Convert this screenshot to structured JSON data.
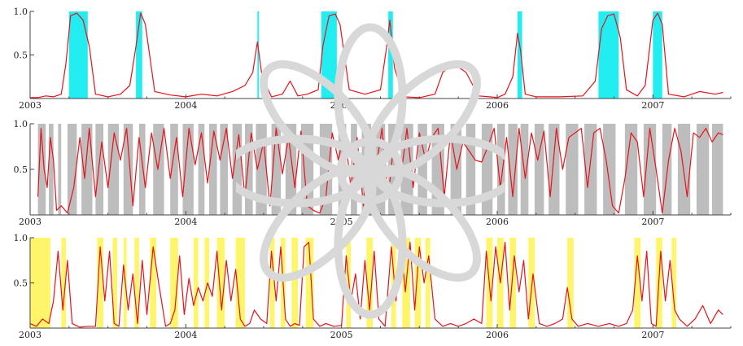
{
  "colors": {
    "line": "#e8121a",
    "axis": "#444444",
    "panel_fill": [
      "#22eef2",
      "#bdbdbd",
      "#fff56a"
    ],
    "watermark": "#d8d8d8"
  },
  "chart_data": [
    {
      "type": "line",
      "xlim": [
        2003.0,
        2007.5
      ],
      "ylim": [
        0,
        1.0
      ],
      "yticks": [
        "0.5",
        "1.0"
      ],
      "xticks": [
        "2003",
        "2004",
        "2005",
        "2006",
        "2007"
      ],
      "highlights": [
        [
          2003.25,
          2003.37
        ],
        [
          2003.68,
          2003.72
        ],
        [
          2004.46,
          2004.47
        ],
        [
          2004.87,
          2004.97
        ],
        [
          2005.3,
          2005.33
        ],
        [
          2006.13,
          2006.16
        ],
        [
          2006.65,
          2006.78
        ],
        [
          2007.0,
          2007.06
        ]
      ],
      "series": [
        {
          "x": [
            2003.0,
            2003.05,
            2003.1,
            2003.15,
            2003.2,
            2003.23,
            2003.26,
            2003.3,
            2003.34,
            2003.38,
            2003.42,
            2003.5,
            2003.58,
            2003.64,
            2003.68,
            2003.71,
            2003.74,
            2003.8,
            2003.9,
            2004.0,
            2004.1,
            2004.2,
            2004.3,
            2004.38,
            2004.43,
            2004.46,
            2004.49,
            2004.55,
            2004.62,
            2004.67,
            2004.72,
            2004.78,
            2004.85,
            2004.88,
            2004.92,
            2004.96,
            2004.99,
            2005.05,
            2005.15,
            2005.25,
            2005.29,
            2005.31,
            2005.34,
            2005.4,
            2005.5,
            2005.6,
            2005.65,
            2005.72,
            2005.8,
            2005.88,
            2005.95,
            2006.0,
            2006.05,
            2006.1,
            2006.13,
            2006.15,
            2006.18,
            2006.25,
            2006.4,
            2006.55,
            2006.63,
            2006.67,
            2006.71,
            2006.75,
            2006.79,
            2006.83,
            2006.9,
            2006.95,
            2007.0,
            2007.03,
            2007.06,
            2007.1,
            2007.2,
            2007.3,
            2007.4,
            2007.45
          ],
          "y": [
            0.01,
            0.01,
            0.03,
            0.02,
            0.05,
            0.4,
            0.95,
            0.98,
            0.9,
            0.6,
            0.05,
            0.02,
            0.05,
            0.15,
            0.6,
            0.98,
            0.85,
            0.08,
            0.04,
            0.02,
            0.05,
            0.03,
            0.08,
            0.15,
            0.3,
            0.65,
            0.25,
            0.02,
            0.05,
            0.2,
            0.03,
            0.05,
            0.1,
            0.6,
            0.95,
            0.97,
            0.85,
            0.1,
            0.05,
            0.1,
            0.6,
            0.9,
            0.35,
            0.02,
            0.01,
            0.05,
            0.3,
            0.4,
            0.3,
            0.03,
            0.02,
            0.01,
            0.05,
            0.25,
            0.75,
            0.55,
            0.05,
            0.02,
            0.02,
            0.03,
            0.2,
            0.8,
            0.95,
            0.97,
            0.7,
            0.1,
            0.03,
            0.15,
            0.9,
            0.98,
            0.85,
            0.05,
            0.02,
            0.08,
            0.05,
            0.07
          ]
        }
      ]
    },
    {
      "type": "line",
      "xlim": [
        2003.0,
        2007.5
      ],
      "ylim": [
        0,
        1.0
      ],
      "yticks": [
        "0.5",
        "1.0"
      ],
      "xticks": [
        "2003",
        "2004",
        "2005",
        "2006",
        "2007"
      ],
      "highlights": [
        [
          2003.05,
          2003.1
        ],
        [
          2003.12,
          2003.15
        ],
        [
          2003.18,
          2003.2
        ],
        [
          2003.24,
          2003.3
        ],
        [
          2003.33,
          2003.4
        ],
        [
          2003.42,
          2003.47
        ],
        [
          2003.5,
          2003.57
        ],
        [
          2003.6,
          2003.66
        ],
        [
          2003.7,
          2003.74
        ],
        [
          2003.79,
          2003.86
        ],
        [
          2003.9,
          2003.95
        ],
        [
          2003.98,
          2004.05
        ],
        [
          2004.08,
          2004.12
        ],
        [
          2004.15,
          2004.2
        ],
        [
          2004.22,
          2004.27
        ],
        [
          2004.3,
          2004.36
        ],
        [
          2004.38,
          2004.43
        ],
        [
          2004.45,
          2004.52
        ],
        [
          2004.55,
          2004.61
        ],
        [
          2004.64,
          2004.71
        ],
        [
          2004.74,
          2004.82
        ],
        [
          2004.86,
          2004.94
        ],
        [
          2004.98,
          2005.03
        ],
        [
          2005.06,
          2005.1
        ],
        [
          2005.13,
          2005.19
        ],
        [
          2005.22,
          2005.28
        ],
        [
          2005.3,
          2005.35
        ],
        [
          2005.38,
          2005.46
        ],
        [
          2005.49,
          2005.55
        ],
        [
          2005.58,
          2005.66
        ],
        [
          2005.7,
          2005.77
        ],
        [
          2005.8,
          2005.86
        ],
        [
          2005.9,
          2005.97
        ],
        [
          2006.0,
          2006.05
        ],
        [
          2006.07,
          2006.13
        ],
        [
          2006.15,
          2006.2
        ],
        [
          2006.24,
          2006.3
        ],
        [
          2006.33,
          2006.4
        ],
        [
          2006.44,
          2006.52
        ],
        [
          2006.56,
          2006.64
        ],
        [
          2006.68,
          2006.76
        ],
        [
          2006.82,
          2006.9
        ],
        [
          2006.94,
          2007.02
        ],
        [
          2007.06,
          2007.12
        ],
        [
          2007.16,
          2007.24
        ],
        [
          2007.28,
          2007.36
        ],
        [
          2007.38,
          2007.45
        ]
      ],
      "series": [
        {
          "x": [
            2003.05,
            2003.07,
            2003.09,
            2003.11,
            2003.13,
            2003.15,
            2003.17,
            2003.2,
            2003.24,
            2003.28,
            2003.32,
            2003.35,
            2003.38,
            2003.42,
            2003.46,
            2003.5,
            2003.54,
            2003.58,
            2003.62,
            2003.66,
            2003.7,
            2003.74,
            2003.78,
            2003.82,
            2003.86,
            2003.9,
            2003.94,
            2003.98,
            2004.02,
            2004.06,
            2004.1,
            2004.14,
            2004.18,
            2004.22,
            2004.26,
            2004.3,
            2004.34,
            2004.38,
            2004.42,
            2004.46,
            2004.5,
            2004.54,
            2004.58,
            2004.62,
            2004.66,
            2004.7,
            2004.74,
            2004.78,
            2004.82,
            2004.86,
            2004.9,
            2004.94,
            2004.98,
            2005.02,
            2005.06,
            2005.1,
            2005.14,
            2005.18,
            2005.22,
            2005.26,
            2005.3,
            2005.34,
            2005.38,
            2005.42,
            2005.46,
            2005.5,
            2005.54,
            2005.58,
            2005.62,
            2005.66,
            2005.7,
            2005.74,
            2005.78,
            2005.82,
            2005.86,
            2005.9,
            2005.94,
            2005.98,
            2006.02,
            2006.06,
            2006.1,
            2006.14,
            2006.18,
            2006.22,
            2006.26,
            2006.3,
            2006.34,
            2006.38,
            2006.42,
            2006.46,
            2006.5,
            2006.54,
            2006.58,
            2006.62,
            2006.66,
            2006.7,
            2006.74,
            2006.78,
            2006.82,
            2006.86,
            2006.9,
            2006.94,
            2006.98,
            2007.02,
            2007.06,
            2007.1,
            2007.14,
            2007.18,
            2007.22,
            2007.26,
            2007.3,
            2007.34,
            2007.38,
            2007.42,
            2007.45
          ],
          "y": [
            0.2,
            0.95,
            0.5,
            0.3,
            0.85,
            0.6,
            0.05,
            0.1,
            0.02,
            0.3,
            0.85,
            0.4,
            0.95,
            0.2,
            0.8,
            0.3,
            0.9,
            0.6,
            0.95,
            0.1,
            0.85,
            0.3,
            0.9,
            0.5,
            0.95,
            0.4,
            0.85,
            0.2,
            0.95,
            0.55,
            0.9,
            0.35,
            0.92,
            0.6,
            0.95,
            0.4,
            0.88,
            0.2,
            0.9,
            0.5,
            0.8,
            0.1,
            0.95,
            0.45,
            0.85,
            0.3,
            0.92,
            0.1,
            0.05,
            0.02,
            0.2,
            0.9,
            0.6,
            0.95,
            0.3,
            0.85,
            0.1,
            0.9,
            0.5,
            0.95,
            0.2,
            0.85,
            0.4,
            0.95,
            0.3,
            0.9,
            0.6,
            0.85,
            0.95,
            0.2,
            0.9,
            0.5,
            0.8,
            0.7,
            0.6,
            0.58,
            0.75,
            0.95,
            0.3,
            0.85,
            0.2,
            0.95,
            0.4,
            0.9,
            0.6,
            0.92,
            0.2,
            0.95,
            0.5,
            0.85,
            0.9,
            0.95,
            0.3,
            0.9,
            0.95,
            0.6,
            0.1,
            0.02,
            0.4,
            0.9,
            0.8,
            0.2,
            0.95,
            0.5,
            0.02,
            0.6,
            0.95,
            0.7,
            0.2,
            0.9,
            0.85,
            0.95,
            0.8,
            0.9,
            0.88
          ]
        }
      ]
    },
    {
      "type": "line",
      "xlim": [
        2003.0,
        2007.5
      ],
      "ylim": [
        0,
        1.0
      ],
      "yticks": [
        "0.5",
        "1.0"
      ],
      "xticks": [
        "2003",
        "2004",
        "2005",
        "2006",
        "2007"
      ],
      "highlights": [
        [
          2003.0,
          2003.13
        ],
        [
          2003.2,
          2003.23
        ],
        [
          2003.43,
          2003.47
        ],
        [
          2003.53,
          2003.56
        ],
        [
          2003.6,
          2003.62
        ],
        [
          2003.67,
          2003.7
        ],
        [
          2003.77,
          2003.81
        ],
        [
          2003.9,
          2003.95
        ],
        [
          2004.05,
          2004.08
        ],
        [
          2004.12,
          2004.15
        ],
        [
          2004.2,
          2004.25
        ],
        [
          2004.32,
          2004.38
        ],
        [
          2004.54,
          2004.57
        ],
        [
          2004.61,
          2004.64
        ],
        [
          2004.68,
          2004.72
        ],
        [
          2004.77,
          2004.82
        ],
        [
          2005.03,
          2005.06
        ],
        [
          2005.16,
          2005.2
        ],
        [
          2005.32,
          2005.35
        ],
        [
          2005.39,
          2005.44
        ],
        [
          2005.47,
          2005.51
        ],
        [
          2005.54,
          2005.57
        ],
        [
          2005.93,
          2005.97
        ],
        [
          2006.0,
          2006.04
        ],
        [
          2006.08,
          2006.12
        ],
        [
          2006.2,
          2006.24
        ],
        [
          2006.45,
          2006.49
        ],
        [
          2006.88,
          2006.92
        ],
        [
          2007.02,
          2007.06
        ],
        [
          2007.12,
          2007.15
        ]
      ],
      "series": [
        {
          "x": [
            2003.0,
            2003.04,
            2003.08,
            2003.12,
            2003.15,
            2003.18,
            2003.21,
            2003.24,
            2003.27,
            2003.32,
            2003.37,
            2003.42,
            2003.45,
            2003.48,
            2003.51,
            2003.54,
            2003.57,
            2003.6,
            2003.63,
            2003.66,
            2003.69,
            2003.72,
            2003.75,
            2003.79,
            2003.83,
            2003.87,
            2003.9,
            2003.93,
            2003.96,
            2003.99,
            2004.02,
            2004.05,
            2004.08,
            2004.11,
            2004.14,
            2004.17,
            2004.2,
            2004.23,
            2004.26,
            2004.29,
            2004.32,
            2004.35,
            2004.38,
            2004.41,
            2004.44,
            2004.48,
            2004.52,
            2004.55,
            2004.58,
            2004.61,
            2004.64,
            2004.67,
            2004.7,
            2004.73,
            2004.76,
            2004.79,
            2004.82,
            2004.86,
            2004.9,
            2004.95,
            2005.0,
            2005.03,
            2005.06,
            2005.09,
            2005.12,
            2005.15,
            2005.18,
            2005.21,
            2005.24,
            2005.28,
            2005.32,
            2005.35,
            2005.38,
            2005.41,
            2005.44,
            2005.47,
            2005.5,
            2005.53,
            2005.56,
            2005.6,
            2005.65,
            2005.7,
            2005.75,
            2005.8,
            2005.85,
            2005.9,
            2005.93,
            2005.96,
            2005.99,
            2006.02,
            2006.05,
            2006.08,
            2006.11,
            2006.14,
            2006.17,
            2006.2,
            2006.23,
            2006.27,
            2006.32,
            2006.37,
            2006.42,
            2006.45,
            2006.48,
            2006.52,
            2006.58,
            2006.65,
            2006.72,
            2006.78,
            2006.83,
            2006.87,
            2006.9,
            2006.93,
            2006.96,
            2006.99,
            2007.02,
            2007.05,
            2007.08,
            2007.11,
            2007.14,
            2007.17,
            2007.22,
            2007.27,
            2007.32,
            2007.37,
            2007.42,
            2007.45
          ],
          "y": [
            0.05,
            0.02,
            0.1,
            0.05,
            0.3,
            0.85,
            0.2,
            0.75,
            0.05,
            0.01,
            0.02,
            0.02,
            0.9,
            0.3,
            0.85,
            0.05,
            0.02,
            0.7,
            0.2,
            0.6,
            0.05,
            0.75,
            0.15,
            0.9,
            0.45,
            0.02,
            0.05,
            0.2,
            0.8,
            0.15,
            0.55,
            0.25,
            0.45,
            0.3,
            0.5,
            0.35,
            0.85,
            0.2,
            0.75,
            0.3,
            0.65,
            0.1,
            0.02,
            0.05,
            0.2,
            0.1,
            0.05,
            0.85,
            0.3,
            0.9,
            0.1,
            0.02,
            0.05,
            0.03,
            0.9,
            0.95,
            0.1,
            0.02,
            0.05,
            0.02,
            0.03,
            0.8,
            0.3,
            0.6,
            0.1,
            0.75,
            0.2,
            0.85,
            0.1,
            0.02,
            0.9,
            0.3,
            0.95,
            0.4,
            0.95,
            0.2,
            0.9,
            0.5,
            0.8,
            0.1,
            0.02,
            0.05,
            0.02,
            0.05,
            0.1,
            0.05,
            0.85,
            0.3,
            0.9,
            0.5,
            0.95,
            0.2,
            0.8,
            0.4,
            0.75,
            0.1,
            0.6,
            0.05,
            0.02,
            0.05,
            0.1,
            0.45,
            0.1,
            0.02,
            0.05,
            0.02,
            0.05,
            0.02,
            0.05,
            0.2,
            0.8,
            0.3,
            0.85,
            0.05,
            0.02,
            0.85,
            0.3,
            0.75,
            0.2,
            0.1,
            0.02,
            0.1,
            0.25,
            0.05,
            0.2,
            0.15
          ]
        }
      ]
    }
  ]
}
